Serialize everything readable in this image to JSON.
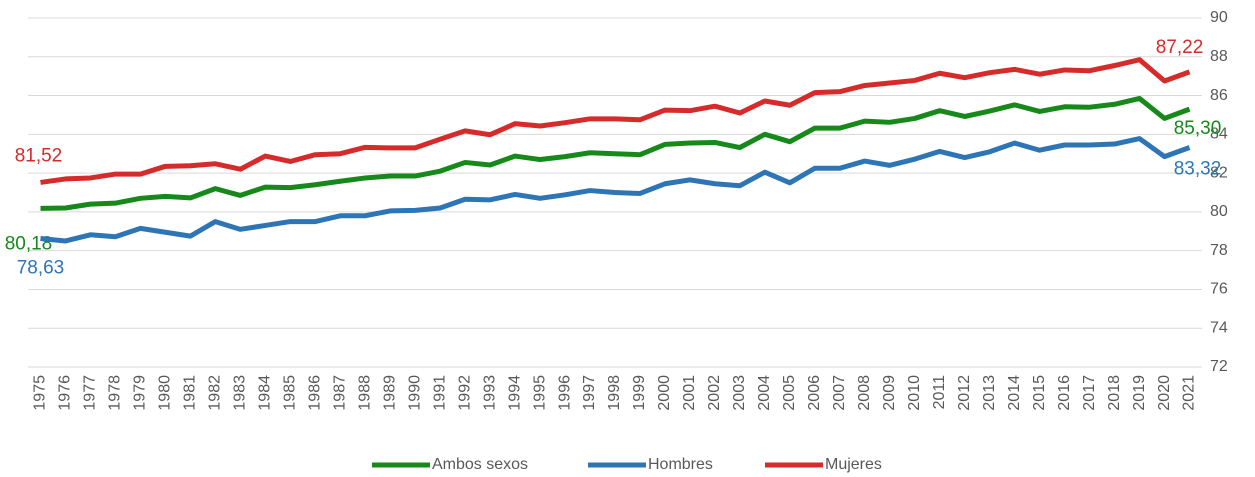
{
  "chart_data": {
    "type": "line",
    "categories": [
      "1975",
      "1976",
      "1977",
      "1978",
      "1979",
      "1980",
      "1981",
      "1982",
      "1983",
      "1984",
      "1985",
      "1986",
      "1987",
      "1988",
      "1989",
      "1990",
      "1991",
      "1992",
      "1993",
      "1994",
      "1995",
      "1996",
      "1997",
      "1998",
      "1999",
      "2000",
      "2001",
      "2002",
      "2003",
      "2004",
      "2005",
      "2006",
      "2007",
      "2008",
      "2009",
      "2010",
      "2011",
      "2012",
      "2013",
      "2014",
      "2015",
      "2016",
      "2017",
      "2018",
      "2019",
      "2020",
      "2021"
    ],
    "series": [
      {
        "name": "Ambos sexos",
        "color": "#17891b",
        "values": [
          80.18,
          80.2,
          80.4,
          80.45,
          80.7,
          80.8,
          80.72,
          81.2,
          80.85,
          81.28,
          81.25,
          81.4,
          81.58,
          81.75,
          81.85,
          81.85,
          82.1,
          82.55,
          82.42,
          82.88,
          82.7,
          82.85,
          83.05,
          83.0,
          82.95,
          83.48,
          83.55,
          83.58,
          83.32,
          84.0,
          83.62,
          84.32,
          84.32,
          84.68,
          84.62,
          84.82,
          85.22,
          84.92,
          85.2,
          85.52,
          85.18,
          85.42,
          85.4,
          85.55,
          85.85,
          84.82,
          85.3
        ],
        "value_labels": [
          "80,18",
          null,
          null,
          null,
          null,
          null,
          null,
          null,
          null,
          null,
          null,
          null,
          null,
          null,
          null,
          null,
          null,
          null,
          null,
          null,
          null,
          null,
          null,
          null,
          null,
          null,
          null,
          null,
          null,
          null,
          null,
          null,
          null,
          null,
          null,
          null,
          null,
          null,
          null,
          null,
          null,
          null,
          null,
          null,
          null,
          null,
          "85,30"
        ]
      },
      {
        "name": "Hombres",
        "color": "#2e75b6",
        "values": [
          78.63,
          78.5,
          78.82,
          78.72,
          79.15,
          78.95,
          78.75,
          79.5,
          79.1,
          79.3,
          79.5,
          79.5,
          79.8,
          79.8,
          80.05,
          80.08,
          80.2,
          80.65,
          80.62,
          80.9,
          80.7,
          80.88,
          81.1,
          81.0,
          80.95,
          81.45,
          81.65,
          81.45,
          81.35,
          82.05,
          81.5,
          82.25,
          82.25,
          82.62,
          82.4,
          82.72,
          83.12,
          82.8,
          83.1,
          83.55,
          83.18,
          83.45,
          83.45,
          83.5,
          83.78,
          82.85,
          83.32
        ],
        "value_labels": [
          "78,63",
          null,
          null,
          null,
          null,
          null,
          null,
          null,
          null,
          null,
          null,
          null,
          null,
          null,
          null,
          null,
          null,
          null,
          null,
          null,
          null,
          null,
          null,
          null,
          null,
          null,
          null,
          null,
          null,
          null,
          null,
          null,
          null,
          null,
          null,
          null,
          null,
          null,
          null,
          null,
          null,
          null,
          null,
          null,
          null,
          null,
          "83,32"
        ]
      },
      {
        "name": "Mujeres",
        "color": "#d62b2b",
        "values": [
          81.52,
          81.7,
          81.75,
          81.95,
          81.95,
          82.35,
          82.38,
          82.48,
          82.2,
          82.88,
          82.6,
          82.95,
          83.0,
          83.33,
          83.3,
          83.3,
          83.75,
          84.18,
          83.98,
          84.55,
          84.43,
          84.6,
          84.8,
          84.8,
          84.75,
          85.25,
          85.22,
          85.45,
          85.1,
          85.72,
          85.5,
          86.15,
          86.2,
          86.52,
          86.65,
          86.78,
          87.15,
          86.92,
          87.18,
          87.35,
          87.1,
          87.32,
          87.28,
          87.55,
          87.85,
          86.75,
          87.22
        ],
        "value_labels": [
          "81,52",
          null,
          null,
          null,
          null,
          null,
          null,
          null,
          null,
          null,
          null,
          null,
          null,
          null,
          null,
          null,
          null,
          null,
          null,
          null,
          null,
          null,
          null,
          null,
          null,
          null,
          null,
          null,
          null,
          null,
          null,
          null,
          null,
          null,
          null,
          null,
          null,
          null,
          null,
          null,
          null,
          null,
          null,
          null,
          null,
          null,
          "87,22"
        ]
      }
    ],
    "ylim": [
      72,
      90
    ],
    "yticks": [
      72,
      74,
      76,
      78,
      80,
      82,
      84,
      86,
      88,
      90
    ],
    "grid": true,
    "legend": "bottom"
  }
}
